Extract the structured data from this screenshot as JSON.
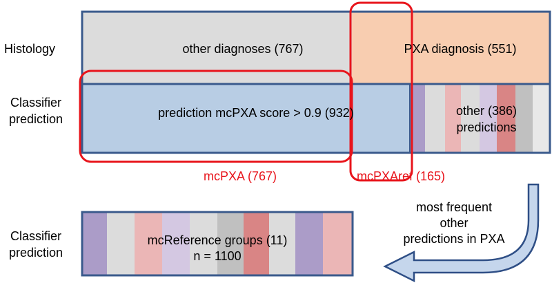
{
  "row_labels": {
    "histology": "Histology",
    "classifier_top": [
      "Classifier",
      "prediction"
    ],
    "classifier_bottom": [
      "Classifier",
      "prediction"
    ]
  },
  "top_box": {
    "other_diagnoses": "other diagnoses (767)",
    "pxa_diagnosis": "PXA diagnosis (551)",
    "prediction": "prediction mcPXA score > 0.9 (932)",
    "other_predictions": [
      "other (386)",
      "predictions"
    ]
  },
  "highlights": {
    "mcpxa": "mcPXA (767)",
    "mcpxaref": "mcPXAref (165)"
  },
  "bottom_box": {
    "lines": [
      "mcReference groups (11)",
      "n = 1100"
    ]
  },
  "arrow_label": [
    "most frequent",
    "other",
    "predictions in PXA"
  ]
}
